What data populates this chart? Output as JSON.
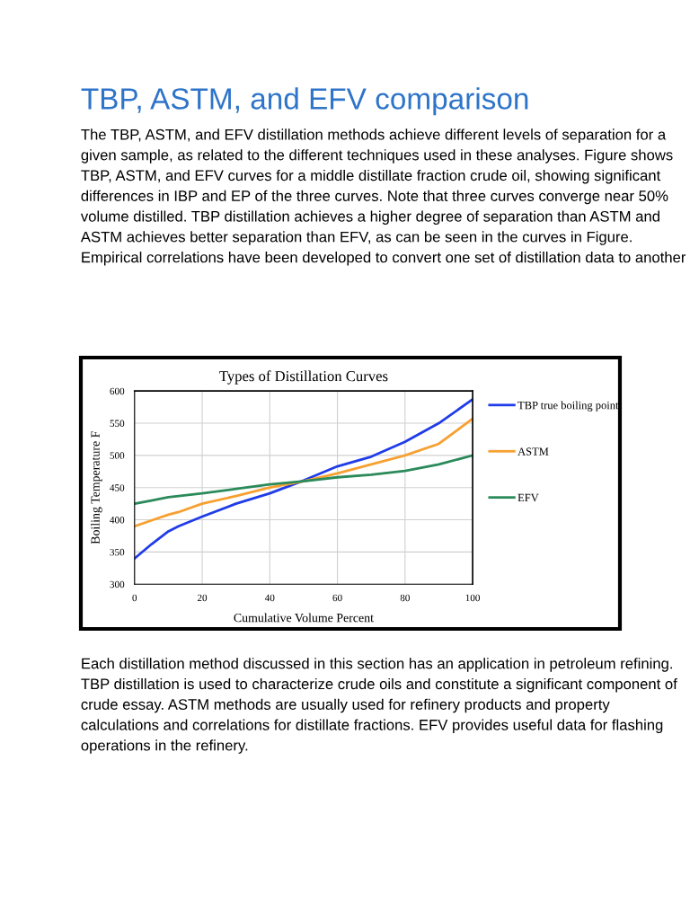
{
  "chart_data": {
    "type": "line",
    "title": "Types of Distillation Curves",
    "xlabel": "Cumulative Volume Percent",
    "ylabel": "Boiling Temperature F",
    "x": [
      0,
      5,
      10,
      13,
      20,
      30,
      40,
      50,
      60,
      70,
      80,
      90,
      100
    ],
    "series": [
      {
        "name": "TBP true boiling point",
        "color": "#1f3ce8",
        "values": [
          340,
          362,
          382,
          390,
          405,
          425,
          441,
          461,
          483,
          498,
          521,
          550,
          587
        ]
      },
      {
        "name": "ASTM",
        "color": "#f7a030",
        "values": [
          390,
          399,
          408,
          412,
          425,
          437,
          450,
          460,
          472,
          486,
          500,
          518,
          557
        ]
      },
      {
        "name": "EFV",
        "color": "#2a8a5a",
        "values": [
          425,
          430,
          435,
          437,
          441,
          448,
          455,
          460,
          466,
          470,
          476,
          486,
          500
        ]
      }
    ],
    "xlim": [
      0,
      100
    ],
    "xticks": [
      0,
      20,
      40,
      60,
      80,
      100
    ],
    "ylim": [
      300,
      600
    ],
    "yticks": [
      300,
      350,
      400,
      450,
      500,
      550,
      600
    ],
    "grid": true,
    "legend": "right",
    "marker": "none",
    "line_style": "solid",
    "annotations": [
      "TBP, ASTM, and EFV comparison",
      "The TBP, ASTM, and EFV distillation methods achieve different levels of separation for a given sample, as related to the different techniques used in these analyses. Figure shows TBP, ASTM, and EFV curves for a middle distillate fraction crude oil, showing significant differences in IBP and EP of the three curves. Note that three curves converge near 50% volume distilled. TBP distillation achieves a higher degree of separation than ASTM and ASTM achieves better separation than EFV, as can be seen in the curves in Figure. Empirical correlations have been developed to convert one set of distillation data to another",
      "Each distillation method discussed in this section has an application in petroleum refining. TBP distillation is used to characterize crude oils and constitute a significant component of crude essay. ASTM methods are usually used for refinery products and property calculations and correlations for distillate fractions. EFV provides useful data for flashing operations in the refinery."
    ]
  }
}
